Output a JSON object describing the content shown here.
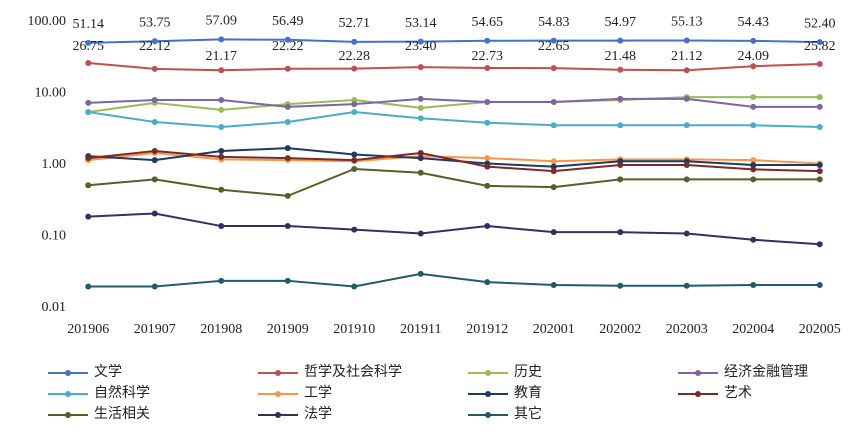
{
  "chart_data": {
    "type": "line",
    "log_scale": true,
    "categories": [
      "201906",
      "201907",
      "201908",
      "201909",
      "201910",
      "201911",
      "201912",
      "202001",
      "202002",
      "202003",
      "202004",
      "202005"
    ],
    "ylim": [
      0.01,
      100
    ],
    "yticks": [
      0.01,
      {
        "value": 0.1,
        "label": "0.10"
      },
      {
        "value": 1,
        "label": "1.00"
      },
      {
        "value": 10,
        "label": "10.00"
      },
      {
        "value": 100,
        "label": "100.00"
      }
    ],
    "series": [
      {
        "name": "文学",
        "color": "#4472c4",
        "values": [
          51.14,
          53.75,
          57.09,
          56.49,
          52.71,
          53.14,
          54.65,
          54.83,
          54.97,
          55.13,
          54.43,
          52.4
        ],
        "value_labels": [
          "51.14",
          "53.75",
          "57.09",
          "56.49",
          "52.71",
          "53.14",
          "54.65",
          "54.83",
          "54.97",
          "55.13",
          "54.43",
          "52.40"
        ]
      },
      {
        "name": "哲学及社会科学",
        "color": "#c0504d",
        "values": [
          26.75,
          22.12,
          21.17,
          22.22,
          22.28,
          23.4,
          22.73,
          22.65,
          21.48,
          21.12,
          24.09,
          25.82
        ],
        "value_labels": [
          "26.75",
          "22.12",
          "21.17",
          "22.22",
          "22.28",
          "23.40",
          "22.73",
          "22.65",
          "21.48",
          "21.12",
          "24.09",
          "25.82"
        ]
      },
      {
        "name": "历史",
        "color": "#9bbb59",
        "values": [
          5.5,
          7.4,
          5.9,
          7.1,
          8.1,
          6.3,
          7.6,
          7.6,
          8.1,
          8.9,
          8.9,
          8.9
        ]
      },
      {
        "name": "经济金融管理",
        "color": "#8064a2",
        "values": [
          7.4,
          8.1,
          8.1,
          6.5,
          7.1,
          8.4,
          7.6,
          7.6,
          8.4,
          8.4,
          6.5,
          6.5
        ]
      },
      {
        "name": "自然科学",
        "color": "#4bacc6",
        "values": [
          5.5,
          4.0,
          3.4,
          4.0,
          5.5,
          4.5,
          3.9,
          3.6,
          3.6,
          3.6,
          3.6,
          3.4
        ]
      },
      {
        "name": "工学",
        "color": "#f79646",
        "values": [
          1.17,
          1.47,
          1.2,
          1.17,
          1.13,
          1.33,
          1.25,
          1.13,
          1.2,
          1.2,
          1.17,
          1.05
        ]
      },
      {
        "name": "教育",
        "color": "#1f3864",
        "values": [
          1.33,
          1.17,
          1.57,
          1.72,
          1.4,
          1.25,
          1.05,
          0.95,
          1.13,
          1.13,
          1.0,
          1.0
        ]
      },
      {
        "name": "艺术",
        "color": "#772c2a",
        "values": [
          1.25,
          1.57,
          1.3,
          1.25,
          1.17,
          1.47,
          0.95,
          0.82,
          1.0,
          1.0,
          0.87,
          0.82
        ]
      },
      {
        "name": "生活相关",
        "color": "#4f6228",
        "values": [
          0.52,
          0.63,
          0.45,
          0.37,
          0.88,
          0.78,
          0.51,
          0.49,
          0.63,
          0.63,
          0.63,
          0.63
        ]
      },
      {
        "name": "法学",
        "color": "#3b2b5e",
        "values": [
          0.19,
          0.21,
          0.14,
          0.14,
          0.125,
          0.11,
          0.14,
          0.115,
          0.115,
          0.11,
          0.09,
          0.078
        ]
      },
      {
        "name": "其它",
        "color": "#215a6b",
        "values": [
          0.02,
          0.02,
          0.024,
          0.024,
          0.02,
          0.03,
          0.023,
          0.021,
          0.0205,
          0.0205,
          0.021,
          0.021
        ]
      }
    ]
  }
}
